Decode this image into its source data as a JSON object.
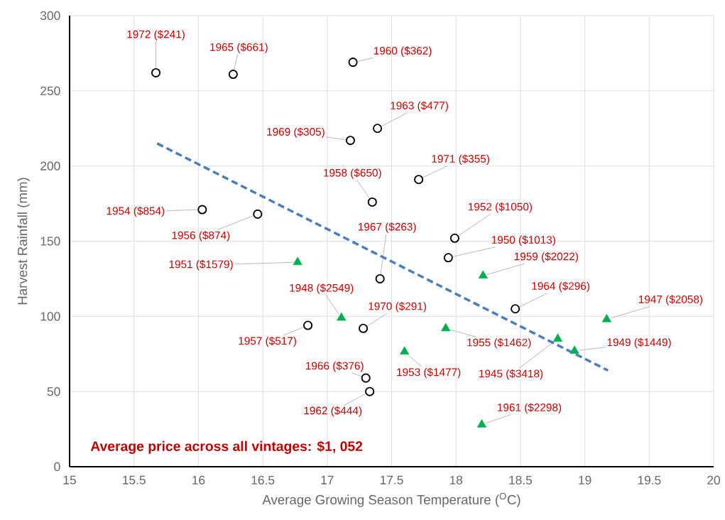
{
  "chart_data": {
    "type": "scatter",
    "xlabel": "Average Growing Season Temperature ($^{O}$C)",
    "ylabel": "Harvest Rainfall (mm)",
    "xlim": [
      15,
      20
    ],
    "ylim": [
      0,
      300
    ],
    "xticks": [
      15,
      15.5,
      16,
      16.5,
      17,
      17.5,
      18,
      18.5,
      19,
      19.5,
      20
    ],
    "yticks": [
      0,
      50,
      100,
      150,
      200,
      250,
      300
    ],
    "grid": true,
    "series": [
      {
        "marker": "circle",
        "color": "#000000",
        "x": [
          15.67,
          16.27,
          17.2,
          17.39,
          17.18,
          17.71,
          17.35,
          16.03,
          16.46,
          17.99,
          17.94,
          17.41,
          18.46,
          17.28,
          16.85,
          17.3,
          17.33
        ],
        "values": [
          262,
          261,
          269,
          225,
          217,
          191,
          176,
          171,
          168,
          152,
          139,
          125,
          105,
          92,
          94,
          59,
          50
        ]
      },
      {
        "marker": "triangle",
        "color": "#00b050",
        "x": [
          18.21,
          16.77,
          19.17,
          17.11,
          17.92,
          18.79,
          18.92,
          17.6,
          18.2
        ],
        "values": [
          127,
          136,
          98,
          99,
          92,
          85,
          77,
          76.5,
          28
        ]
      },
      {
        "type": "line",
        "marker": "none",
        "line_style": "dashed",
        "color": "#4a7ebb",
        "x": [
          15.68,
          19.18
        ],
        "values": [
          215,
          64
        ]
      }
    ],
    "annotations": [
      {
        "text": "1972 ($241)",
        "x": 15.67,
        "y": 262
      },
      {
        "text": "1965 ($661)",
        "x": 16.27,
        "y": 261
      },
      {
        "text": "1960 ($362)",
        "x": 17.2,
        "y": 269
      },
      {
        "text": "1963 ($477)",
        "x": 17.39,
        "y": 225
      },
      {
        "text": "1969 ($305)",
        "x": 17.18,
        "y": 217
      },
      {
        "text": "1971 ($355)",
        "x": 17.71,
        "y": 191
      },
      {
        "text": "1958 ($650)",
        "x": 17.35,
        "y": 176
      },
      {
        "text": "1954 ($854)",
        "x": 16.03,
        "y": 171
      },
      {
        "text": "1956 ($874)",
        "x": 16.46,
        "y": 168
      },
      {
        "text": "1952 ($1050)",
        "x": 17.99,
        "y": 152
      },
      {
        "text": "1950 ($1013)",
        "x": 17.94,
        "y": 139
      },
      {
        "text": "1967 ($263)",
        "x": 17.41,
        "y": 125
      },
      {
        "text": "1964 ($296)",
        "x": 18.46,
        "y": 105
      },
      {
        "text": "1970 ($291)",
        "x": 17.28,
        "y": 92
      },
      {
        "text": "1957 ($517)",
        "x": 16.85,
        "y": 94
      },
      {
        "text": "1966 ($376)",
        "x": 17.3,
        "y": 59
      },
      {
        "text": "1962 ($444)",
        "x": 17.33,
        "y": 50
      },
      {
        "text": "1959 ($2022)",
        "x": 18.21,
        "y": 127
      },
      {
        "text": "1951 ($1579)",
        "x": 16.77,
        "y": 136
      },
      {
        "text": "1947 ($2058)",
        "x": 19.17,
        "y": 98
      },
      {
        "text": "1948 ($2549)",
        "x": 17.11,
        "y": 99
      },
      {
        "text": "1955 ($1462)",
        "x": 17.92,
        "y": 92
      },
      {
        "text": "1945 ($3418)",
        "x": 18.79,
        "y": 85
      },
      {
        "text": "1949 ($1449)",
        "x": 18.92,
        "y": 77
      },
      {
        "text": "1953 ($1477)",
        "x": 17.6,
        "y": 76.5
      },
      {
        "text": "1961 ($2298)",
        "x": 18.2,
        "y": 28
      },
      "Average price across all vintages: $1, 052"
    ]
  }
}
